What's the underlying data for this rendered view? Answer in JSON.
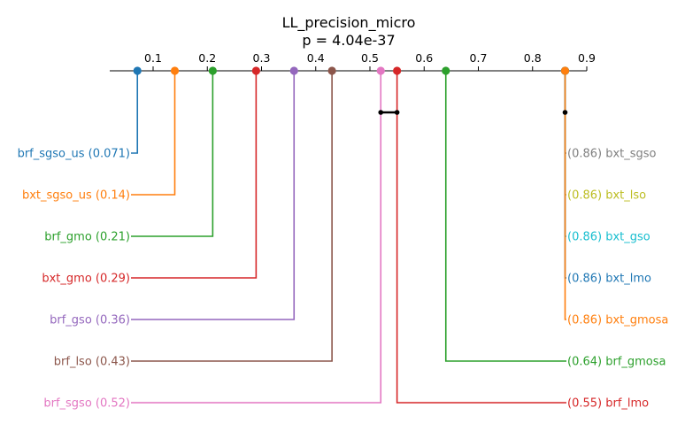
{
  "chart_data": {
    "type": "critical-difference-diagram",
    "title": "LL_precision_micro",
    "subtitle": "p = 4.04e-37",
    "axis": {
      "min": 0.02,
      "max": 0.9,
      "ticks": [
        {
          "value": 0.1,
          "label": "0.1"
        },
        {
          "value": 0.2,
          "label": "0.2"
        },
        {
          "value": 0.3,
          "label": "0.3"
        },
        {
          "value": 0.4,
          "label": "0.4"
        },
        {
          "value": 0.5,
          "label": "0.5"
        },
        {
          "value": 0.6,
          "label": "0.6"
        },
        {
          "value": 0.7,
          "label": "0.7"
        },
        {
          "value": 0.8,
          "label": "0.8"
        },
        {
          "value": 0.9,
          "label": "0.9"
        }
      ]
    },
    "left_methods": [
      {
        "name": "brf_sgso_us",
        "value": 0.071,
        "label": "brf_sgso_us (0.071)",
        "color": "#1f77b4"
      },
      {
        "name": "bxt_sgso_us",
        "value": 0.14,
        "label": "bxt_sgso_us (0.14)",
        "color": "#ff7f0e"
      },
      {
        "name": "brf_gmo",
        "value": 0.21,
        "label": "brf_gmo (0.21)",
        "color": "#2ca02c"
      },
      {
        "name": "bxt_gmo",
        "value": 0.29,
        "label": "bxt_gmo (0.29)",
        "color": "#d62728"
      },
      {
        "name": "brf_gso",
        "value": 0.36,
        "label": "brf_gso (0.36)",
        "color": "#9467bd"
      },
      {
        "name": "brf_lso",
        "value": 0.43,
        "label": "brf_lso (0.43)",
        "color": "#8c564b"
      },
      {
        "name": "brf_sgso",
        "value": 0.52,
        "label": "brf_sgso (0.52)",
        "color": "#e377c2"
      }
    ],
    "right_methods": [
      {
        "name": "bxt_sgso",
        "value": 0.86,
        "label": "(0.86) bxt_sgso",
        "color": "#7f7f7f"
      },
      {
        "name": "bxt_lso",
        "value": 0.86,
        "label": "(0.86) bxt_lso",
        "color": "#bcbd22"
      },
      {
        "name": "bxt_gso",
        "value": 0.86,
        "label": "(0.86) bxt_gso",
        "color": "#17becf"
      },
      {
        "name": "bxt_lmo",
        "value": 0.86,
        "label": "(0.86) bxt_lmo",
        "color": "#1f77b4"
      },
      {
        "name": "bxt_gmosa",
        "value": 0.86,
        "label": "(0.86) bxt_gmosa",
        "color": "#ff7f0e"
      },
      {
        "name": "brf_gmosa",
        "value": 0.64,
        "label": "(0.64) brf_gmosa",
        "color": "#2ca02c"
      },
      {
        "name": "brf_lmo",
        "value": 0.55,
        "label": "(0.55) brf_lmo",
        "color": "#d62728"
      }
    ],
    "cliques": [
      {
        "from": 0.52,
        "to": 0.55
      },
      {
        "from": 0.86,
        "to": 0.86
      }
    ]
  }
}
